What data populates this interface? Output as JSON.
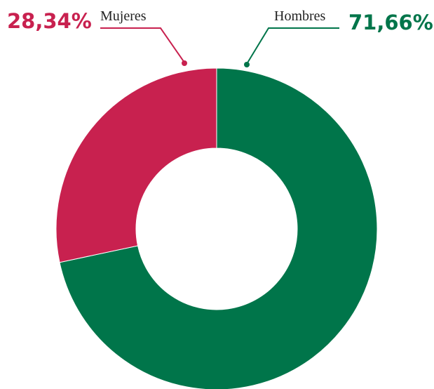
{
  "chart_data": {
    "type": "donut",
    "categories": [
      "Hombres",
      "Mujeres"
    ],
    "values": [
      71.66,
      28.34
    ],
    "value_labels": [
      "71,66%",
      "28,34%"
    ],
    "colors": [
      "#00754a",
      "#c8214f"
    ]
  }
}
